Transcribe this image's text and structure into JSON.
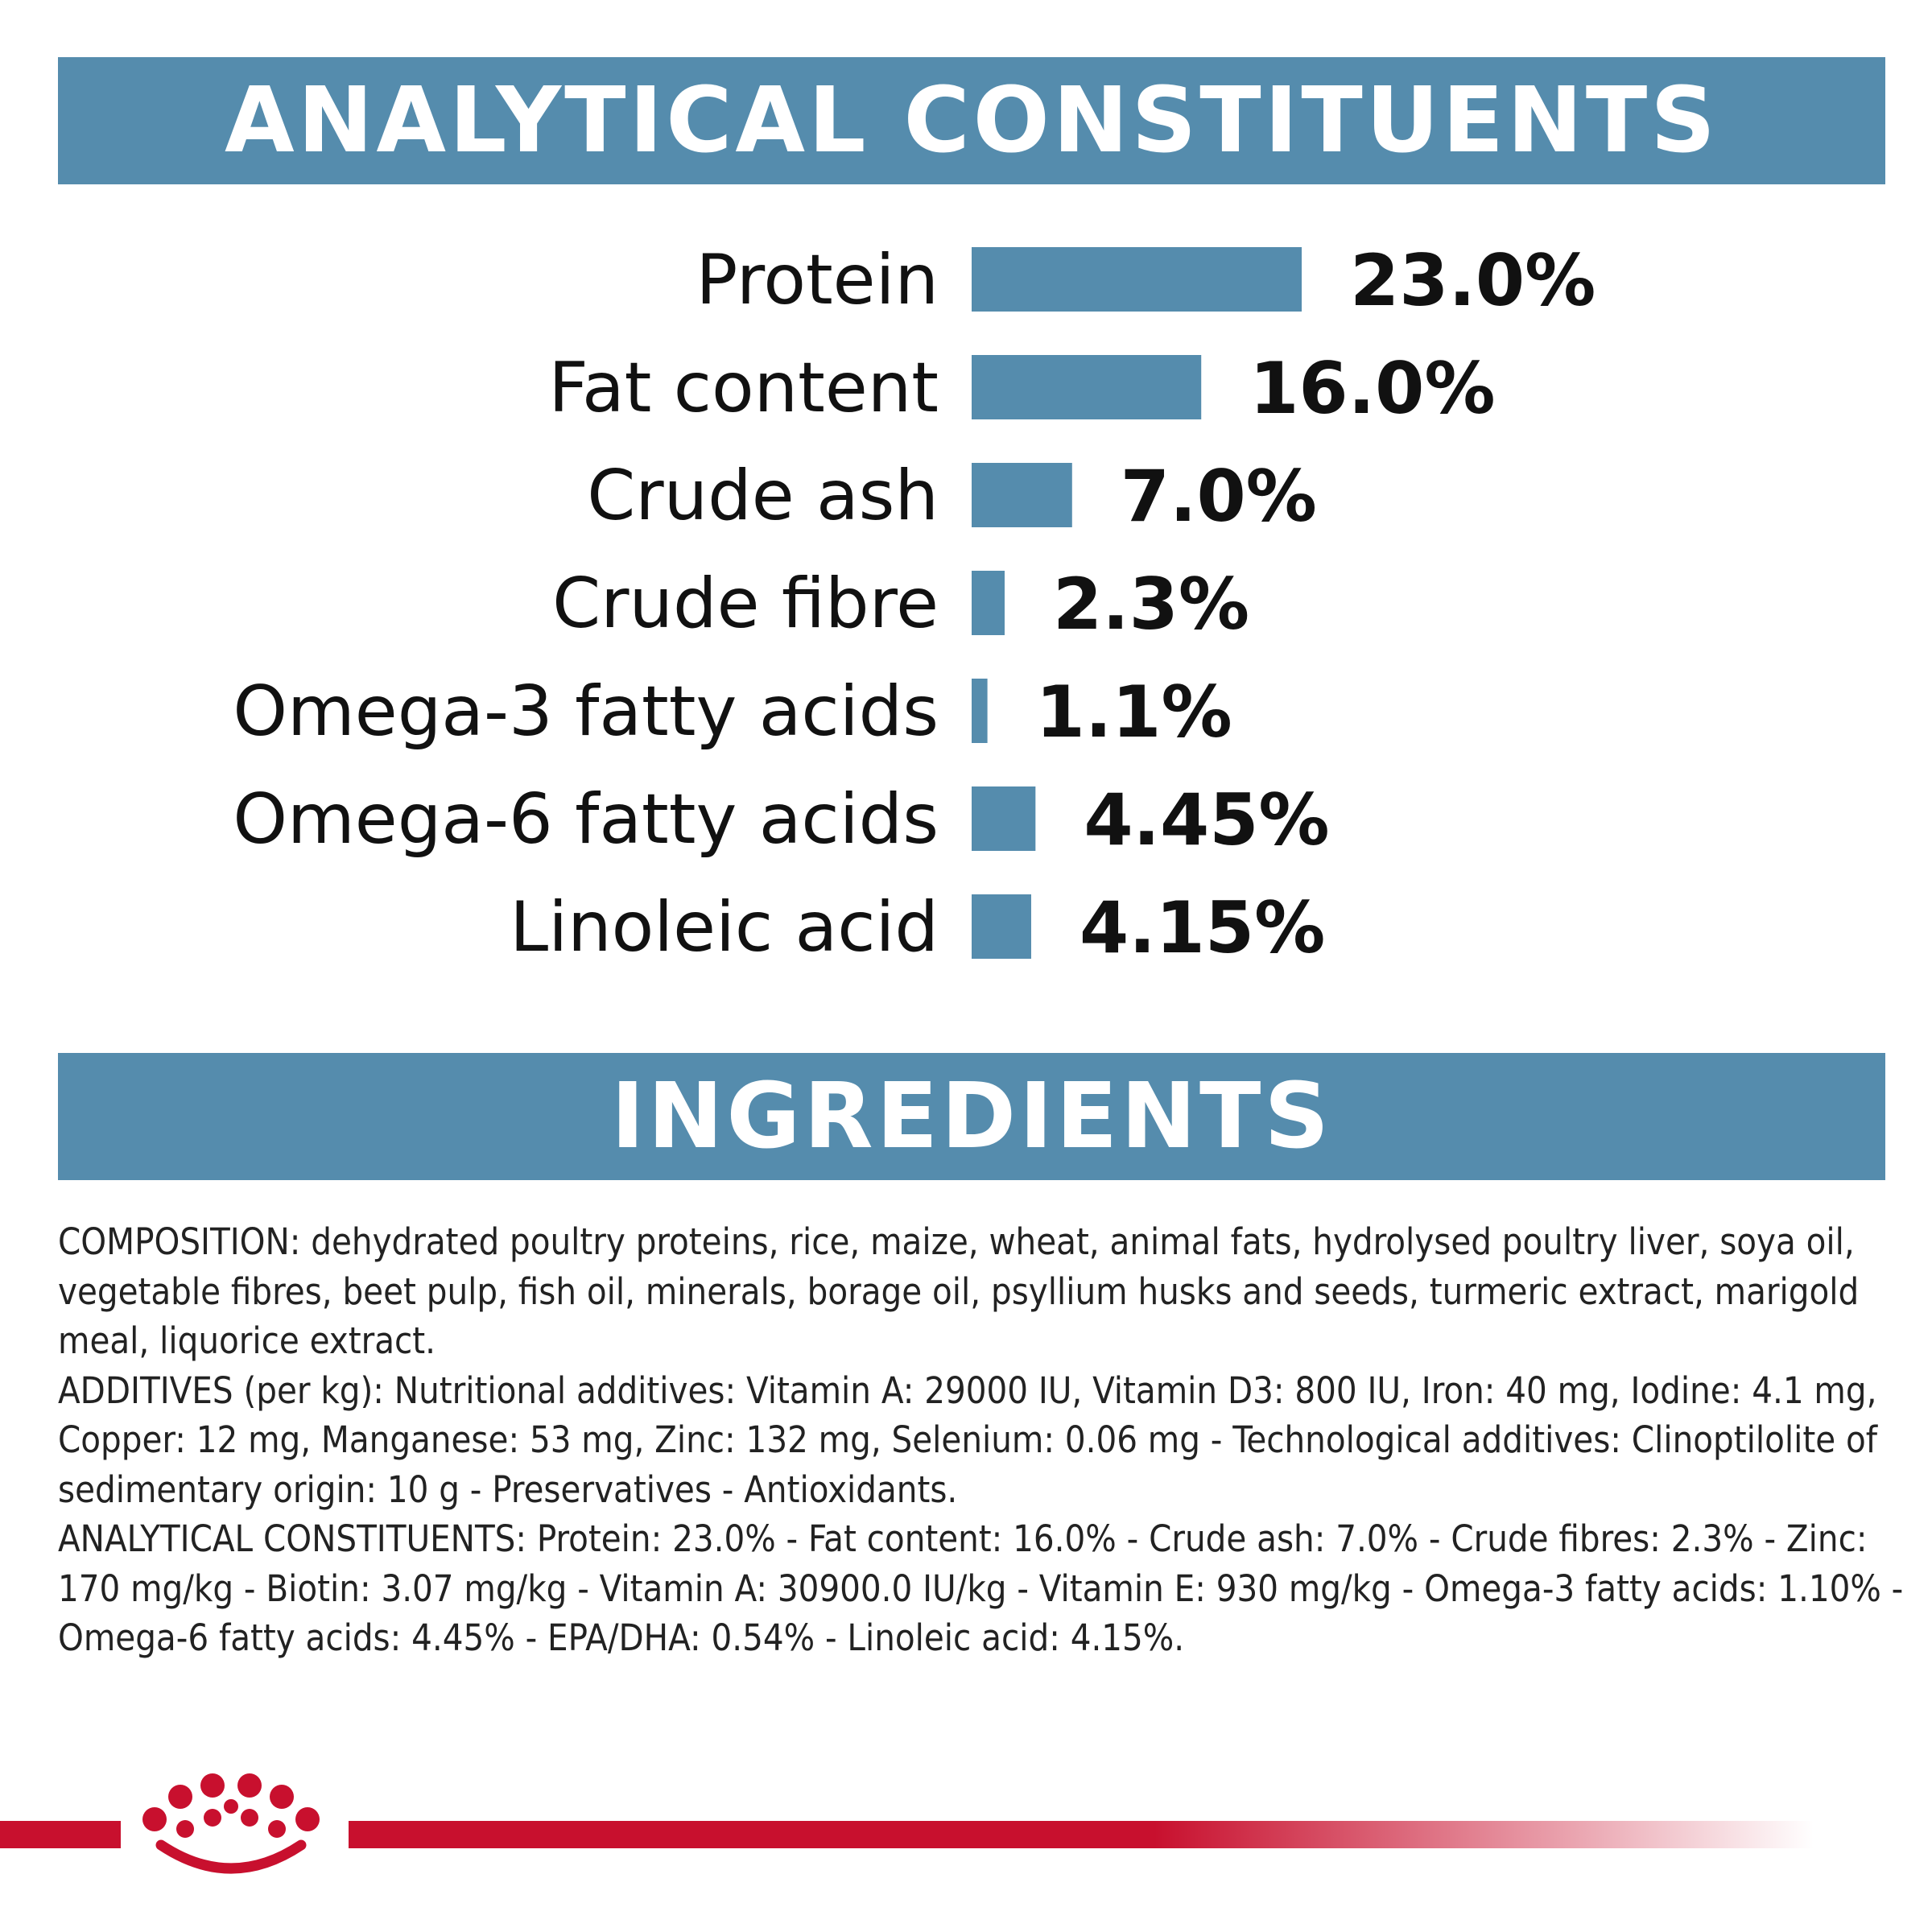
{
  "colors": {
    "banner": "#558CAD",
    "bar": "#558CAD",
    "brand_red": "#C8102E"
  },
  "analytical": {
    "title": "ANALYTICAL CONSTITUENTS"
  },
  "chart_data": {
    "type": "bar",
    "orientation": "horizontal",
    "title": "ANALYTICAL CONSTITUENTS",
    "categories": [
      "Protein",
      "Fat content",
      "Crude ash",
      "Crude fibre",
      "Omega-3 fatty acids",
      "Omega-6 fatty acids",
      "Linoleic acid"
    ],
    "values": [
      23.0,
      16.0,
      7.0,
      2.3,
      1.1,
      4.45,
      4.15
    ],
    "value_labels": [
      "23.0%",
      "16.0%",
      "7.0%",
      "2.3%",
      "1.1%",
      "4.45%",
      "4.15%"
    ],
    "unit": "%",
    "grid": false,
    "legend": "none",
    "xlabel": "",
    "ylabel": ""
  },
  "ingredients": {
    "title": "INGREDIENTS",
    "composition": "COMPOSITION: dehydrated poultry proteins, rice, maize, wheat, animal fats, hydrolysed poultry liver, soya oil, vegetable fibres, beet pulp, fish oil, minerals, borage oil, psyllium husks and seeds, turmeric extract, marigold meal, liquorice extract.",
    "additives": "ADDITIVES (per kg): Nutritional additives: Vitamin A: 29000 IU, Vitamin D3: 800 IU, Iron: 40 mg, Iodine: 4.1 mg, Copper: 12 mg, Manganese: 53 mg, Zinc: 132 mg, Selenium: 0.06 mg - Technological additives: Clinoptilolite of sedimentary origin: 10 g - Preservatives - Antioxidants.",
    "analytical_constituents": "ANALYTICAL CONSTITUENTS: Protein: 23.0% - Fat content: 16.0% - Crude ash: 7.0% - Crude fibres: 2.3% - Zinc: 170 mg/kg - Biotin: 3.07 mg/kg - Vitamin A: 30900.0 IU/kg - Vitamin E: 930 mg/kg - Omega-3 fatty acids: 1.10% - Omega-6 fatty acids: 4.45% - EPA/DHA: 0.54% - Linoleic acid: 4.15%."
  },
  "brand": {
    "logo_icon": "crown-icon"
  }
}
